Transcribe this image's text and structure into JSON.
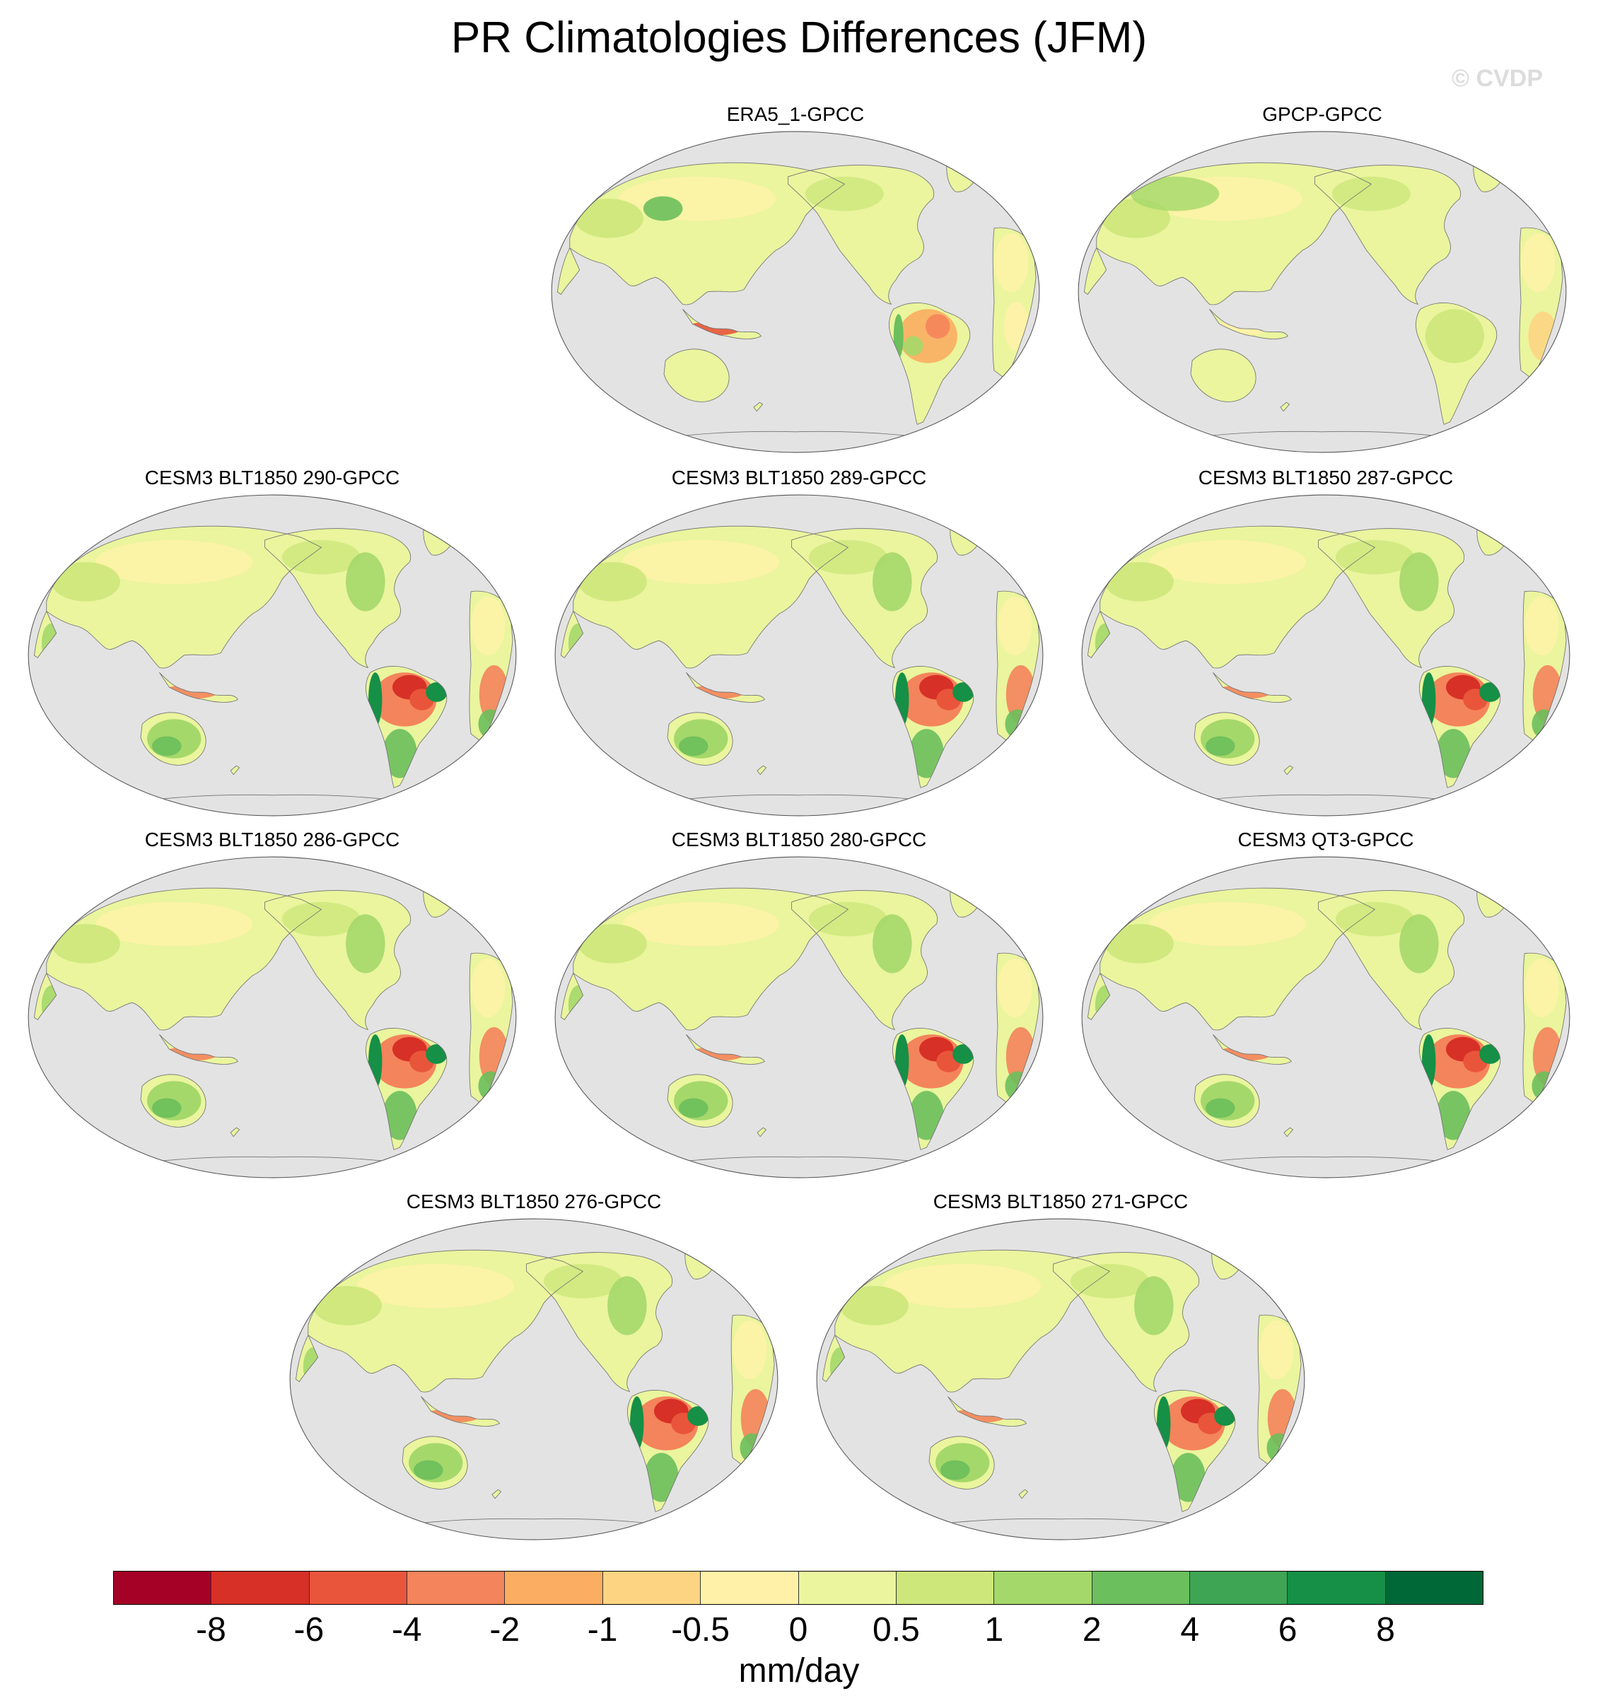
{
  "title": "PR Climatologies Differences (JFM)",
  "watermark": "© CVDP",
  "panels": [
    {
      "title": "ERA5_1-GPCC",
      "scheme": "era5"
    },
    {
      "title": "GPCP-GPCC",
      "scheme": "gpcp"
    },
    {
      "title": "CESM3 BLT1850 290-GPCC",
      "scheme": "model"
    },
    {
      "title": "CESM3 BLT1850 289-GPCC",
      "scheme": "model"
    },
    {
      "title": "CESM3 BLT1850 287-GPCC",
      "scheme": "model"
    },
    {
      "title": "CESM3 BLT1850 286-GPCC",
      "scheme": "model"
    },
    {
      "title": "CESM3 BLT1850 280-GPCC",
      "scheme": "model"
    },
    {
      "title": "CESM3 QT3-GPCC",
      "scheme": "model"
    },
    {
      "title": "CESM3 BLT1850 276-GPCC",
      "scheme": "model"
    },
    {
      "title": "CESM3 BLT1850 271-GPCC",
      "scheme": "model"
    }
  ],
  "colorbar": {
    "labels": [
      "-8",
      "-6",
      "-4",
      "-2",
      "-1",
      "-0.5",
      "0",
      "0.5",
      "1",
      "2",
      "4",
      "6",
      "8"
    ],
    "colors": [
      "#a50026",
      "#d73027",
      "#e9553b",
      "#f4845b",
      "#fbae61",
      "#fdd582",
      "#fff2a8",
      "#eaf59e",
      "#cde77a",
      "#a5d86a",
      "#6bbf5c",
      "#3da553",
      "#159046",
      "#006837"
    ],
    "unit": "mm/day"
  },
  "colors": {
    "ocean": "#e3e3e3",
    "coastline": "#707070",
    "map_outline": "#555555"
  }
}
